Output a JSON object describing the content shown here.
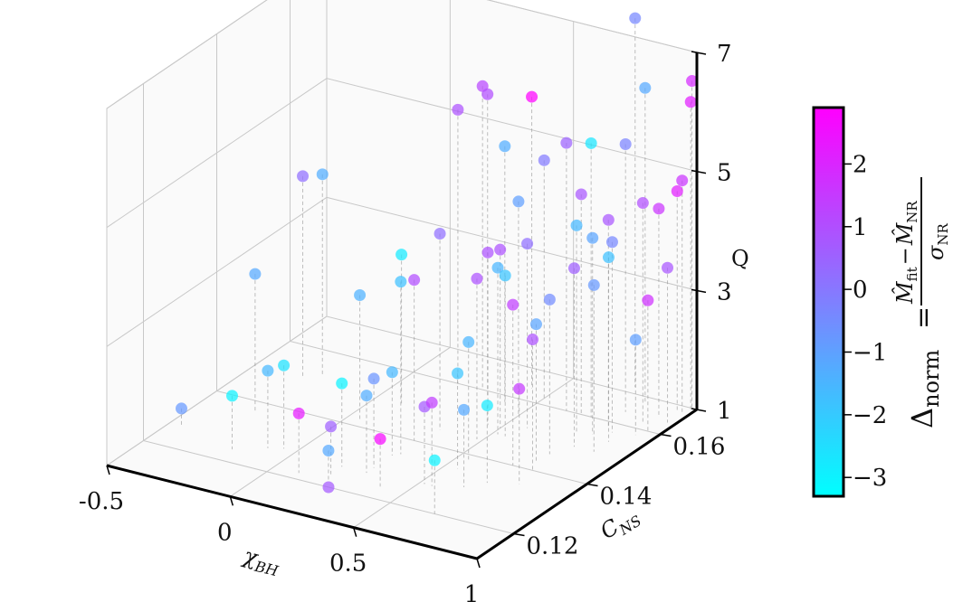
{
  "chart_data": {
    "type": "scatter",
    "projection": "3d",
    "title": "",
    "axes": {
      "x": {
        "label": "χ",
        "label_sub": "BH",
        "ticks": [
          -0.5,
          0,
          0.5,
          1
        ],
        "tick_labels": [
          "-0.5",
          "0",
          "0.5",
          "1"
        ],
        "range": [
          -0.5,
          1
        ]
      },
      "y": {
        "label": "C",
        "label_sub": "NS",
        "ticks": [
          0.12,
          0.14,
          0.16
        ],
        "tick_labels": [
          "0.12",
          "0.14",
          "0.16"
        ],
        "range": [
          0.11,
          0.17
        ]
      },
      "z": {
        "label": "Q",
        "ticks": [
          1,
          3,
          5,
          7
        ],
        "tick_labels": [
          "1",
          "3",
          "5",
          "7"
        ],
        "range": [
          1,
          7
        ]
      }
    },
    "grid": true,
    "drop_lines": true,
    "colorbar": {
      "label_lhs": "Δ",
      "label_lhs_sub": "norm",
      "label_eq": "=",
      "label_num_a": "M̂",
      "label_num_a_sub": "fit",
      "label_num_minus": "−",
      "label_num_b": "M̂",
      "label_num_b_sub": "NR",
      "label_den": "σ",
      "label_den_sub": "NR",
      "ticks": [
        -3,
        -2,
        -1,
        0,
        1,
        2
      ],
      "tick_labels": [
        "−3",
        "−2",
        "−1",
        "0",
        "1",
        "2"
      ],
      "range": [
        -3.3,
        2.9
      ],
      "colormap": "cool",
      "color_min": "#00ffff",
      "color_max": "#ff00ff"
    },
    "points": [
      {
        "x": -0.45,
        "y": 0.127,
        "z": 1.3,
        "c": -0.8
      },
      {
        "x": -0.3,
        "y": 0.137,
        "z": 3.3,
        "c": -1.2
      },
      {
        "x": -0.25,
        "y": 0.152,
        "z": 4.4,
        "c": -1.3
      },
      {
        "x": -0.3,
        "y": 0.15,
        "z": 4.4,
        "c": 0.2
      },
      {
        "x": -0.2,
        "y": 0.124,
        "z": 1.9,
        "c": -3.0
      },
      {
        "x": -0.1,
        "y": 0.127,
        "z": 2.3,
        "c": -1.6
      },
      {
        "x": -0.05,
        "y": 0.128,
        "z": 2.4,
        "c": -2.6
      },
      {
        "x": 0.05,
        "y": 0.142,
        "z": 3.1,
        "c": -1.4
      },
      {
        "x": 0.1,
        "y": 0.15,
        "z": 3.5,
        "c": -2.8
      },
      {
        "x": 0.1,
        "y": 0.122,
        "z": 2.0,
        "c": 2.3
      },
      {
        "x": 0.2,
        "y": 0.127,
        "z": 2.4,
        "c": -3.0
      },
      {
        "x": 0.2,
        "y": 0.124,
        "z": 1.8,
        "c": 0.6
      },
      {
        "x": 0.22,
        "y": 0.122,
        "z": 1.5,
        "c": -1.2
      },
      {
        "x": 0.18,
        "y": 0.16,
        "z": 5.6,
        "c": 0.9
      },
      {
        "x": 0.28,
        "y": 0.16,
        "z": 6.1,
        "c": 1.2
      },
      {
        "x": 0.33,
        "y": 0.158,
        "z": 6.1,
        "c": 1.0
      },
      {
        "x": 0.33,
        "y": 0.145,
        "z": 4.3,
        "c": 0.2
      },
      {
        "x": 0.32,
        "y": 0.135,
        "z": 3.9,
        "c": -1.8
      },
      {
        "x": 0.3,
        "y": 0.14,
        "z": 3.7,
        "c": 1.0
      },
      {
        "x": 0.3,
        "y": 0.134,
        "z": 2.4,
        "c": -1.6
      },
      {
        "x": 0.3,
        "y": 0.129,
        "z": 2.5,
        "c": -0.7
      },
      {
        "x": 0.3,
        "y": 0.127,
        "z": 2.3,
        "c": -1.3
      },
      {
        "x": 0.25,
        "y": 0.12,
        "z": 1.0,
        "c": 0.7
      },
      {
        "x": 0.4,
        "y": 0.124,
        "z": 1.8,
        "c": 2.7
      },
      {
        "x": 0.45,
        "y": 0.15,
        "z": 3.9,
        "c": 0.9
      },
      {
        "x": 0.48,
        "y": 0.145,
        "z": 3.7,
        "c": 0.9
      },
      {
        "x": 0.4,
        "y": 0.158,
        "z": 5.3,
        "c": -1.3
      },
      {
        "x": 0.42,
        "y": 0.164,
        "z": 5.9,
        "c": 2.9
      },
      {
        "x": 0.5,
        "y": 0.162,
        "z": 5.0,
        "c": -0.1
      },
      {
        "x": 0.5,
        "y": 0.155,
        "z": 4.6,
        "c": -1.0
      },
      {
        "x": 0.5,
        "y": 0.15,
        "z": 4.0,
        "c": 0.9
      },
      {
        "x": 0.52,
        "y": 0.148,
        "z": 3.8,
        "c": -1.5
      },
      {
        "x": 0.55,
        "y": 0.148,
        "z": 3.7,
        "c": -1.9
      },
      {
        "x": 0.55,
        "y": 0.138,
        "z": 3.0,
        "c": -1.5
      },
      {
        "x": 0.55,
        "y": 0.135,
        "z": 2.6,
        "c": -1.9
      },
      {
        "x": 0.52,
        "y": 0.128,
        "z": 2.3,
        "c": 0.7
      },
      {
        "x": 0.55,
        "y": 0.128,
        "z": 2.4,
        "c": 1.4
      },
      {
        "x": 0.58,
        "y": 0.152,
        "z": 4.1,
        "c": 0.2
      },
      {
        "x": 0.62,
        "y": 0.16,
        "z": 5.5,
        "c": 0.5
      },
      {
        "x": 0.68,
        "y": 0.16,
        "z": 4.7,
        "c": 0.8
      },
      {
        "x": 0.72,
        "y": 0.172,
        "z": 7.2,
        "c": -0.4
      },
      {
        "x": 0.72,
        "y": 0.16,
        "z": 5.6,
        "c": -2.7
      },
      {
        "x": 0.7,
        "y": 0.14,
        "z": 3.7,
        "c": 1.4
      },
      {
        "x": 0.65,
        "y": 0.13,
        "z": 2.3,
        "c": -1.2
      },
      {
        "x": 0.7,
        "y": 0.133,
        "z": 2.3,
        "c": -2.8
      },
      {
        "x": 0.68,
        "y": 0.12,
        "z": 1.9,
        "c": -3.0
      },
      {
        "x": 0.75,
        "y": 0.154,
        "z": 4.5,
        "c": -1.6
      },
      {
        "x": 0.8,
        "y": 0.155,
        "z": 4.3,
        "c": -1.1
      },
      {
        "x": 0.8,
        "y": 0.164,
        "z": 5.5,
        "c": -0.3
      },
      {
        "x": 0.82,
        "y": 0.168,
        "z": 6.3,
        "c": -1.2
      },
      {
        "x": 0.8,
        "y": 0.15,
        "z": 4.0,
        "c": 0.6
      },
      {
        "x": 0.76,
        "y": 0.146,
        "z": 3.6,
        "c": -0.5
      },
      {
        "x": 0.75,
        "y": 0.143,
        "z": 3.3,
        "c": -1.1
      },
      {
        "x": 0.78,
        "y": 0.14,
        "z": 3.2,
        "c": 0.9
      },
      {
        "x": 0.8,
        "y": 0.135,
        "z": 2.6,
        "c": 1.5
      },
      {
        "x": 0.82,
        "y": 0.158,
        "z": 4.5,
        "c": 0.8
      },
      {
        "x": 0.85,
        "y": 0.157,
        "z": 4.2,
        "c": -0.4
      },
      {
        "x": 0.88,
        "y": 0.154,
        "z": 4.1,
        "c": -1.8
      },
      {
        "x": 0.88,
        "y": 0.15,
        "z": 3.8,
        "c": -0.8
      },
      {
        "x": 0.9,
        "y": 0.162,
        "z": 4.7,
        "c": 1.0
      },
      {
        "x": 0.92,
        "y": 0.165,
        "z": 4.5,
        "c": 1.6
      },
      {
        "x": 0.95,
        "y": 0.168,
        "z": 4.7,
        "c": 2.2
      },
      {
        "x": 0.97,
        "y": 0.168,
        "z": 4.9,
        "c": 1.6
      },
      {
        "x": 0.97,
        "y": 0.164,
        "z": 3.6,
        "c": 0.8
      },
      {
        "x": 0.95,
        "y": 0.16,
        "z": 3.2,
        "c": 1.7
      },
      {
        "x": 0.93,
        "y": 0.158,
        "z": 2.6,
        "c": -1.0
      },
      {
        "x": 0.98,
        "y": 0.17,
        "z": 6.5,
        "c": 1.9
      },
      {
        "x": 0.99,
        "y": 0.169,
        "z": 6.2,
        "c": 2.2
      }
    ]
  }
}
